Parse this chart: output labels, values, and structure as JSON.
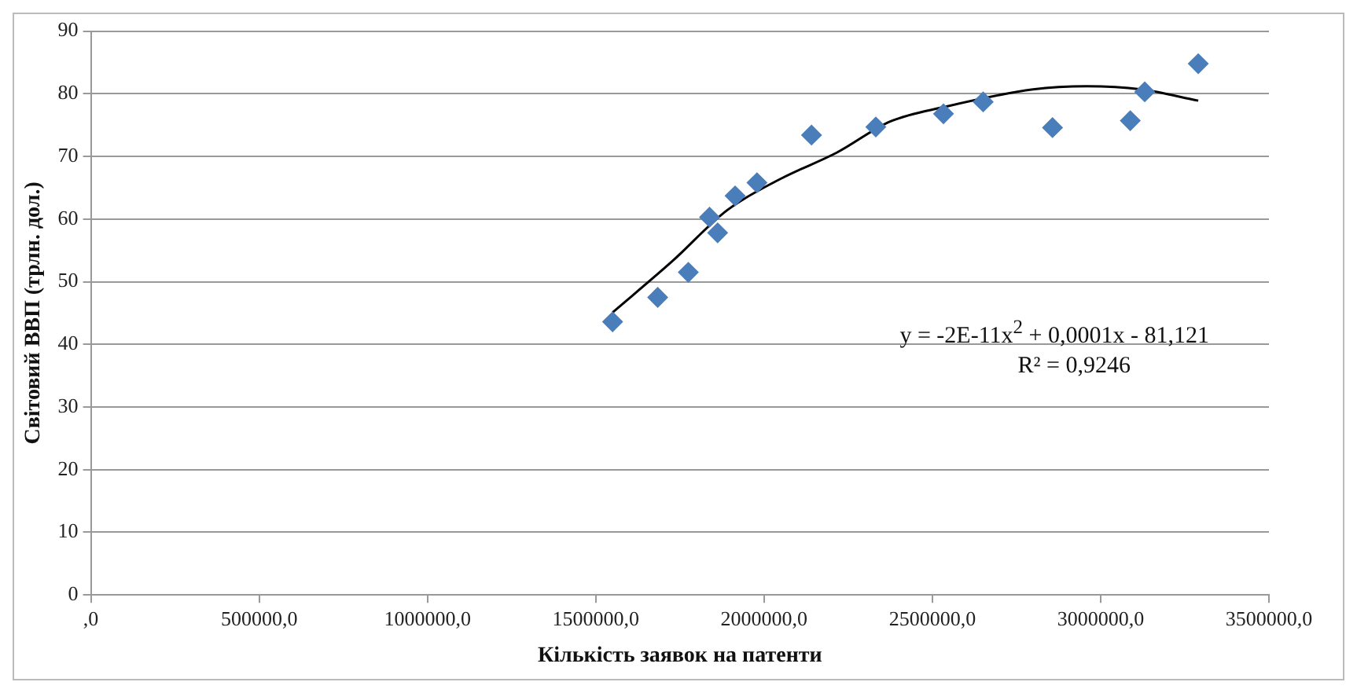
{
  "chart_data": {
    "type": "scatter",
    "xlabel": "Кількість заявок на патенти",
    "ylabel": "Світовий ВВП (трлн. дол.)",
    "xlim": [
      0,
      3500000
    ],
    "xticks": [
      {
        "value": 0,
        "label": ",0"
      },
      {
        "value": 500000,
        "label": "500000,0"
      },
      {
        "value": 1000000,
        "label": "1000000,0"
      },
      {
        "value": 1500000,
        "label": "1500000,0"
      },
      {
        "value": 2000000,
        "label": "2000000,0"
      },
      {
        "value": 2500000,
        "label": "2500000,0"
      },
      {
        "value": 3000000,
        "label": "3000000,0"
      },
      {
        "value": 3500000,
        "label": "3500000,0"
      }
    ],
    "ylim": [
      0,
      90
    ],
    "yticks": [
      0,
      10,
      20,
      30,
      40,
      50,
      60,
      70,
      80,
      90
    ],
    "grid": "y",
    "legend": false,
    "series": [
      {
        "color": "#4a7ebb",
        "marker": "diamond",
        "x": [
          1550000,
          1684000,
          1775000,
          1838000,
          1862000,
          1914000,
          1979000,
          2141000,
          2332000,
          2533000,
          2651000,
          2857000,
          3088000,
          3131000,
          3290000
        ],
        "values": [
          43.6,
          47.5,
          51.5,
          60.3,
          57.8,
          63.7,
          65.8,
          73.4,
          74.7,
          76.8,
          78.7,
          74.6,
          75.7,
          80.3,
          84.8
        ]
      },
      {
        "type": "line",
        "color": "#000000",
        "marker": "none",
        "x": [
          1550000,
          1728000,
          1890000,
          2052000,
          2216000,
          2376000,
          2536000,
          2799000,
          2959000,
          3120000,
          3290000
        ],
        "values": [
          45.1,
          53.3,
          61.4,
          66.5,
          70.6,
          75.6,
          77.9,
          80.7,
          81.2,
          80.7,
          78.9
        ]
      }
    ],
    "annotations": [
      "y = -2E-11x$^{2}$ + 0,0001x - 81,121",
      "R² = 0,9246"
    ]
  }
}
